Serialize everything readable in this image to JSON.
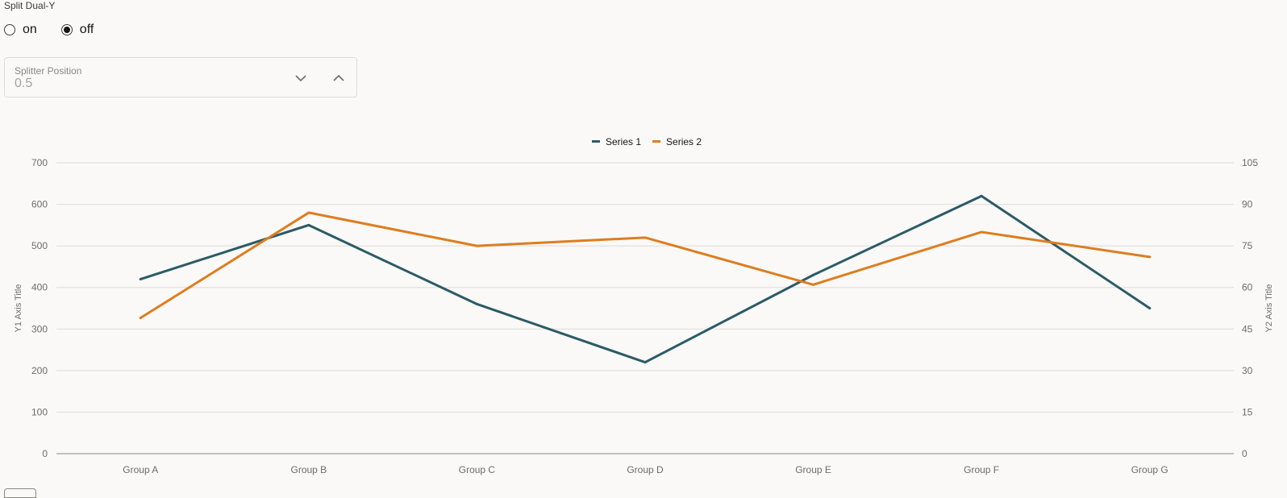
{
  "controls": {
    "split_label": "Split Dual-Y",
    "radio_on_label": "on",
    "radio_off_label": "off",
    "selected": "off",
    "splitter_label": "Splitter Position",
    "splitter_value": "0.5",
    "icons": {
      "decrement": "chevron-down-icon",
      "increment": "chevron-up-icon"
    }
  },
  "chart_data": {
    "type": "line",
    "categories": [
      "Group A",
      "Group B",
      "Group C",
      "Group D",
      "Group E",
      "Group F",
      "Group G"
    ],
    "series": [
      {
        "name": "Series 1",
        "axis": "y1",
        "color": "#2a5b66",
        "values": [
          420,
          550,
          360,
          220,
          430,
          620,
          350
        ]
      },
      {
        "name": "Series 2",
        "axis": "y2",
        "color": "#de7d1f",
        "values": [
          49,
          87,
          75,
          78,
          61,
          80,
          71
        ]
      }
    ],
    "y1": {
      "label": "Y1 Axis Title",
      "min": 0,
      "max": 700,
      "ticks": [
        0,
        100,
        200,
        300,
        400,
        500,
        600,
        700
      ]
    },
    "y2": {
      "label": "Y2 Axis Title",
      "min": 0,
      "max": 105,
      "ticks": [
        0,
        15,
        30,
        45,
        60,
        75,
        90,
        105
      ]
    },
    "legend_position": "top-center",
    "grid": true
  }
}
